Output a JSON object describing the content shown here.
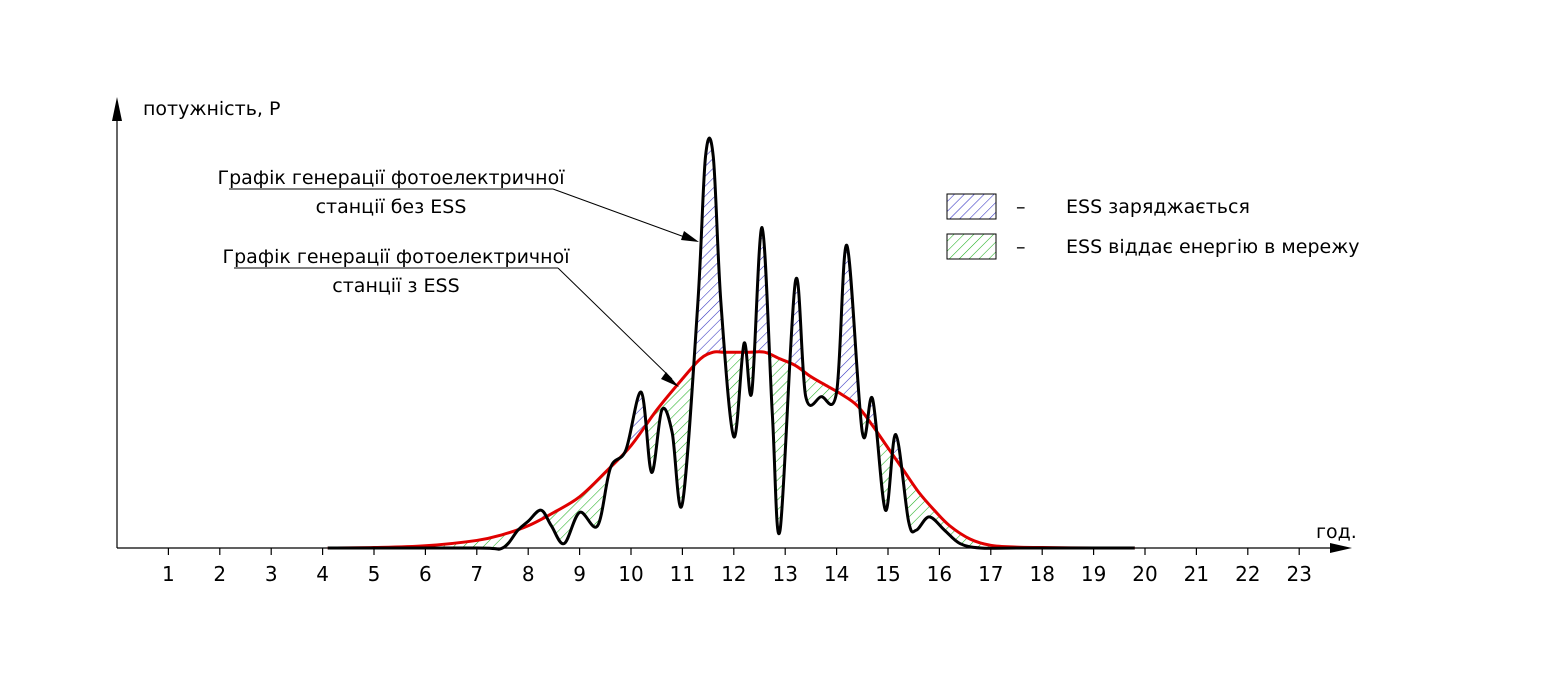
{
  "chart_data": {
    "type": "line",
    "ylabel": "потужність, P",
    "xlabel": "год.",
    "xlim": [
      0,
      23.5
    ],
    "ylim": [
      0,
      1.0
    ],
    "x_ticks": [
      "1",
      "2",
      "3",
      "4",
      "5",
      "6",
      "7",
      "8",
      "9",
      "10",
      "11",
      "12",
      "13",
      "14",
      "15",
      "16",
      "17",
      "18",
      "19",
      "20",
      "21",
      "22",
      "23"
    ],
    "grid": false,
    "series": [
      {
        "name": "Графік генерації фотоелектричної станції без ESS",
        "color": "#000000",
        "x": [
          4.1,
          7.0,
          7.5,
          7.8,
          8.0,
          8.25,
          8.45,
          8.7,
          9.0,
          9.35,
          9.6,
          9.9,
          10.2,
          10.4,
          10.6,
          10.8,
          11.0,
          11.3,
          11.45,
          11.6,
          11.75,
          12.0,
          12.2,
          12.35,
          12.55,
          12.75,
          12.9,
          13.2,
          13.4,
          13.7,
          14.0,
          14.2,
          14.5,
          14.7,
          14.95,
          15.15,
          15.4,
          15.55,
          15.8,
          16.1,
          16.4,
          16.8,
          17.5,
          19.8
        ],
        "y": [
          0.0,
          0.0,
          0.0,
          0.04,
          0.06,
          0.085,
          0.05,
          0.01,
          0.08,
          0.05,
          0.18,
          0.22,
          0.35,
          0.17,
          0.31,
          0.26,
          0.1,
          0.55,
          0.88,
          0.88,
          0.55,
          0.25,
          0.46,
          0.35,
          0.72,
          0.3,
          0.04,
          0.6,
          0.34,
          0.34,
          0.35,
          0.68,
          0.26,
          0.335,
          0.085,
          0.255,
          0.06,
          0.04,
          0.07,
          0.04,
          0.01,
          0.0,
          0.0,
          0.0
        ]
      },
      {
        "name": "Графік генерації фотоелектричної станції з ESS",
        "color": "#e00000",
        "x": [
          4.1,
          5.0,
          6.0,
          7.0,
          7.5,
          8.0,
          8.5,
          9.0,
          9.5,
          10.0,
          10.5,
          11.0,
          11.35,
          11.6,
          11.8,
          12.0,
          12.3,
          12.6,
          12.9,
          13.2,
          13.5,
          13.8,
          14.1,
          14.4,
          14.7,
          15.0,
          15.3,
          15.6,
          15.9,
          16.2,
          16.6,
          17.0,
          17.5,
          18.0,
          19.0,
          19.8
        ],
        "y": [
          0.0,
          0.001,
          0.005,
          0.017,
          0.03,
          0.05,
          0.08,
          0.115,
          0.17,
          0.23,
          0.31,
          0.38,
          0.425,
          0.44,
          0.44,
          0.44,
          0.44,
          0.44,
          0.425,
          0.41,
          0.385,
          0.365,
          0.345,
          0.32,
          0.275,
          0.225,
          0.175,
          0.125,
          0.085,
          0.05,
          0.02,
          0.006,
          0.002,
          0.001,
          0.0,
          0.0
        ]
      }
    ],
    "annotations": [
      {
        "line1": "Графік генерації фотоелектричної",
        "line2": "станції без ESS"
      },
      {
        "line1": "Графік генерації фотоелектричної",
        "line2": "станції з ESS"
      }
    ],
    "legend": {
      "placement": "top-right",
      "items": [
        {
          "label": "ESS заряджається",
          "color": "#3030c0",
          "dash": "–"
        },
        {
          "label": "ESS віддає енергію в мережу",
          "color": "#20b020",
          "dash": "–"
        }
      ]
    }
  }
}
